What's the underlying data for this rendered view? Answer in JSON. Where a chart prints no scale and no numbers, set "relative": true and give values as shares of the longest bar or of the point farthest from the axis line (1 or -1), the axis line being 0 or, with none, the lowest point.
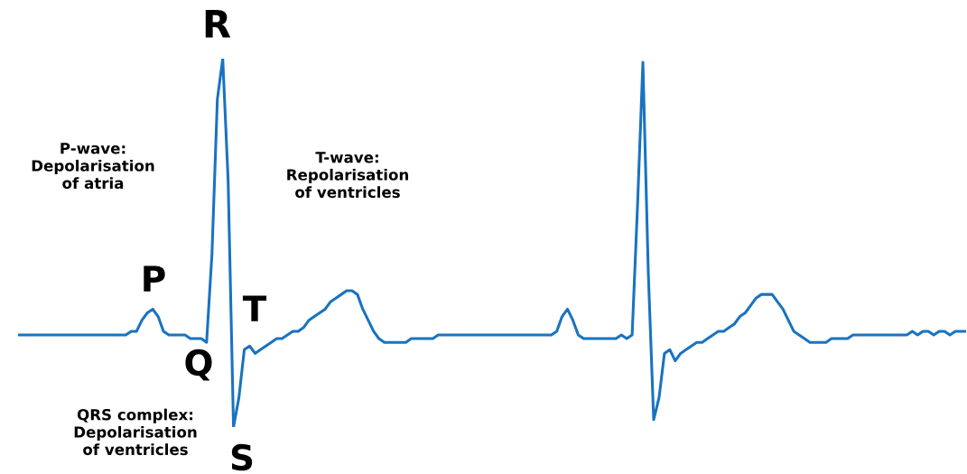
{
  "chart_data": {
    "type": "line",
    "relative": true,
    "tick_labels": false,
    "categories": [
      null,
      null,
      null,
      null,
      null,
      null,
      null,
      null,
      null,
      null,
      null,
      null,
      null,
      null,
      null,
      null,
      null,
      null,
      null,
      null,
      null,
      null,
      null,
      null,
      null,
      null,
      null,
      null,
      null,
      null,
      null,
      null,
      null,
      null,
      null,
      null,
      null,
      null,
      null,
      null,
      null,
      null,
      null,
      null,
      null,
      null,
      null,
      null,
      null,
      null,
      null,
      null,
      null,
      null,
      null,
      null,
      null,
      null,
      null,
      null,
      null,
      null,
      null,
      null,
      null,
      null,
      null,
      null,
      null,
      null,
      null,
      null,
      null,
      null,
      null,
      null,
      null,
      null,
      null,
      null,
      null,
      null,
      null,
      null,
      null,
      null,
      null,
      null,
      null,
      null,
      null,
      null,
      null,
      null,
      null,
      null,
      null,
      null,
      null,
      null,
      null,
      null,
      null,
      null,
      null,
      null,
      null,
      null,
      null,
      null,
      null,
      null,
      null,
      null,
      null,
      null,
      null,
      null,
      null,
      null,
      null,
      null,
      null,
      null,
      null,
      null,
      null,
      null,
      null,
      null,
      null,
      null,
      null,
      null,
      null,
      null,
      null,
      null,
      null,
      null,
      null,
      null,
      null,
      null,
      null,
      null,
      null,
      null,
      null,
      null,
      null,
      null,
      null,
      null,
      null,
      null,
      null,
      null,
      null,
      null,
      null,
      null,
      null,
      null,
      null,
      null,
      null,
      null,
      null,
      null,
      null,
      null,
      null,
      null,
      null,
      null,
      null
    ],
    "series": [
      {
        "color": "#1a73c0",
        "values": [
          0.25,
          0.25,
          0.25,
          0.25,
          0.25,
          0.25,
          0.25,
          0.25,
          0.25,
          0.25,
          0.25,
          0.25,
          0.25,
          0.25,
          0.25,
          0.25,
          0.25,
          0.25,
          0.25,
          0.25,
          0.25,
          0.26,
          0.26,
          0.29,
          0.31,
          0.32,
          0.3,
          0.26,
          0.25,
          0.25,
          0.25,
          0.25,
          0.24,
          0.24,
          0.24,
          0.23,
          0.47,
          0.89,
          1,
          0.67,
          0,
          0.08,
          0.21,
          0.22,
          0.2,
          0.21,
          0.22,
          0.23,
          0.24,
          0.24,
          0.25,
          0.26,
          0.26,
          0.27,
          0.29,
          0.3,
          0.31,
          0.32,
          0.34,
          0.35,
          0.36,
          0.37,
          0.37,
          0.36,
          0.32,
          0.29,
          0.26,
          0.24,
          0.23,
          0.23,
          0.23,
          0.23,
          0.23,
          0.24,
          0.24,
          0.24,
          0.24,
          0.24,
          0.25,
          0.25,
          0.25,
          0.25,
          0.25,
          0.25,
          0.25,
          0.25,
          0.25,
          0.25,
          0.25,
          0.25,
          0.25,
          0.25,
          0.25,
          0.25,
          0.25,
          0.25,
          0.25,
          0.25,
          0.25,
          0.25,
          0.26,
          0.3,
          0.32,
          0.29,
          0.25,
          0.24,
          0.24,
          0.24,
          0.24,
          0.24,
          0.24,
          0.24,
          0.25,
          0.24,
          0.25,
          0.6,
          0.99,
          0.42,
          0.02,
          0.08,
          0.2,
          0.21,
          0.18,
          0.2,
          0.21,
          0.22,
          0.23,
          0.23,
          0.24,
          0.25,
          0.26,
          0.26,
          0.27,
          0.28,
          0.3,
          0.31,
          0.33,
          0.35,
          0.36,
          0.36,
          0.36,
          0.34,
          0.32,
          0.29,
          0.26,
          0.25,
          0.24,
          0.23,
          0.23,
          0.23,
          0.23,
          0.24,
          0.24,
          0.24,
          0.24,
          0.25,
          0.25,
          0.25,
          0.25,
          0.25,
          0.25,
          0.25,
          0.25,
          0.25,
          0.25,
          0.25,
          0.26,
          0.25,
          0.26,
          0.26,
          0.25,
          0.26,
          0.26,
          0.25,
          0.26,
          0.26,
          0.26
        ]
      }
    ],
    "annotations": [
      "R",
      "P",
      "T",
      "Q",
      "S",
      "P-wave:\nDepolarisation\nof atria",
      "T-wave:\nRepolarisation\nof ventricles",
      "QRS complex:\nDepolarisation\nof ventricles"
    ]
  }
}
